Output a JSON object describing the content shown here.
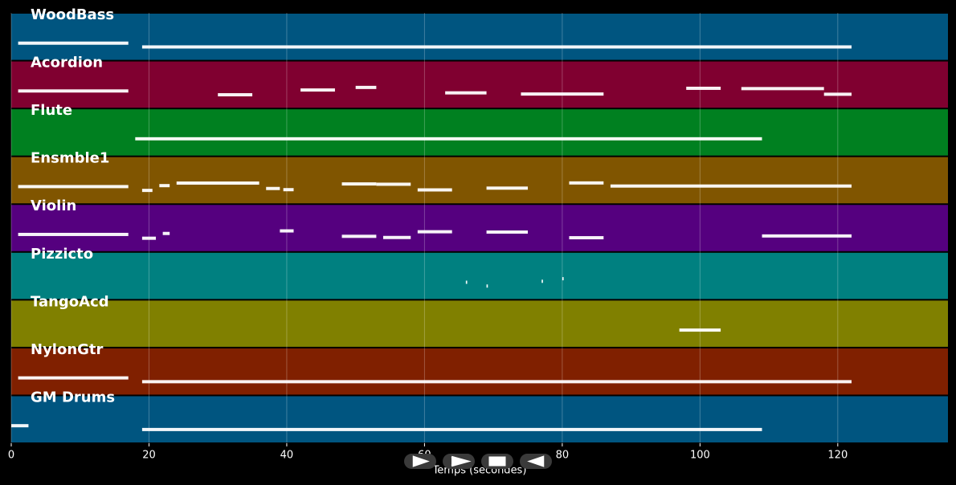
{
  "chart_data": {
    "type": "pianoroll",
    "xlabel": "Temps (secondes)",
    "xlim": [
      0,
      136
    ],
    "xticks": [
      0,
      20,
      40,
      60,
      80,
      100,
      120
    ],
    "grid": true,
    "note_color": "#ffffff",
    "tracks": [
      {
        "name": "WoodBass",
        "color": "#005580",
        "notes": [
          [
            1,
            17
          ],
          [
            19,
            122
          ]
        ]
      },
      {
        "name": "Acordion",
        "color": "#800030",
        "notes": [
          [
            1,
            17
          ],
          [
            30,
            35
          ],
          [
            42,
            47
          ],
          [
            50,
            53
          ],
          [
            63,
            69
          ],
          [
            74,
            86
          ],
          [
            98,
            103
          ],
          [
            106,
            118
          ],
          [
            118,
            122
          ]
        ]
      },
      {
        "name": "Flute",
        "color": "#008020",
        "notes": [
          [
            18,
            109
          ]
        ]
      },
      {
        "name": "Ensmble1",
        "color": "#805500",
        "notes": [
          [
            1,
            17
          ],
          [
            19,
            20.5
          ],
          [
            21.5,
            23
          ],
          [
            24,
            36
          ],
          [
            37,
            39
          ],
          [
            39.5,
            41
          ],
          [
            48,
            53
          ],
          [
            53,
            58
          ],
          [
            59,
            64
          ],
          [
            69,
            75
          ],
          [
            81,
            86
          ],
          [
            87,
            122
          ]
        ]
      },
      {
        "name": "Violin",
        "color": "#55007f",
        "notes": [
          [
            1,
            17
          ],
          [
            19,
            21
          ],
          [
            22,
            23
          ],
          [
            39,
            41
          ],
          [
            48,
            53
          ],
          [
            54,
            58
          ],
          [
            59,
            64
          ],
          [
            69,
            75
          ],
          [
            81,
            86
          ],
          [
            109,
            122
          ]
        ]
      },
      {
        "name": "Pizzicto",
        "color": "#008080",
        "notes": [
          [
            66,
            66.2
          ],
          [
            69,
            69.2
          ],
          [
            77,
            77.2
          ],
          [
            80,
            80.2
          ]
        ]
      },
      {
        "name": "TangoAcd",
        "color": "#808000",
        "notes": [
          [
            97,
            103
          ]
        ]
      },
      {
        "name": "NylonGtr",
        "color": "#802000",
        "notes": [
          [
            1,
            17
          ],
          [
            19,
            122
          ]
        ]
      },
      {
        "name": "GM Drums",
        "color": "#005580",
        "notes": [
          [
            0,
            2.5
          ],
          [
            19,
            109
          ]
        ]
      }
    ]
  }
}
